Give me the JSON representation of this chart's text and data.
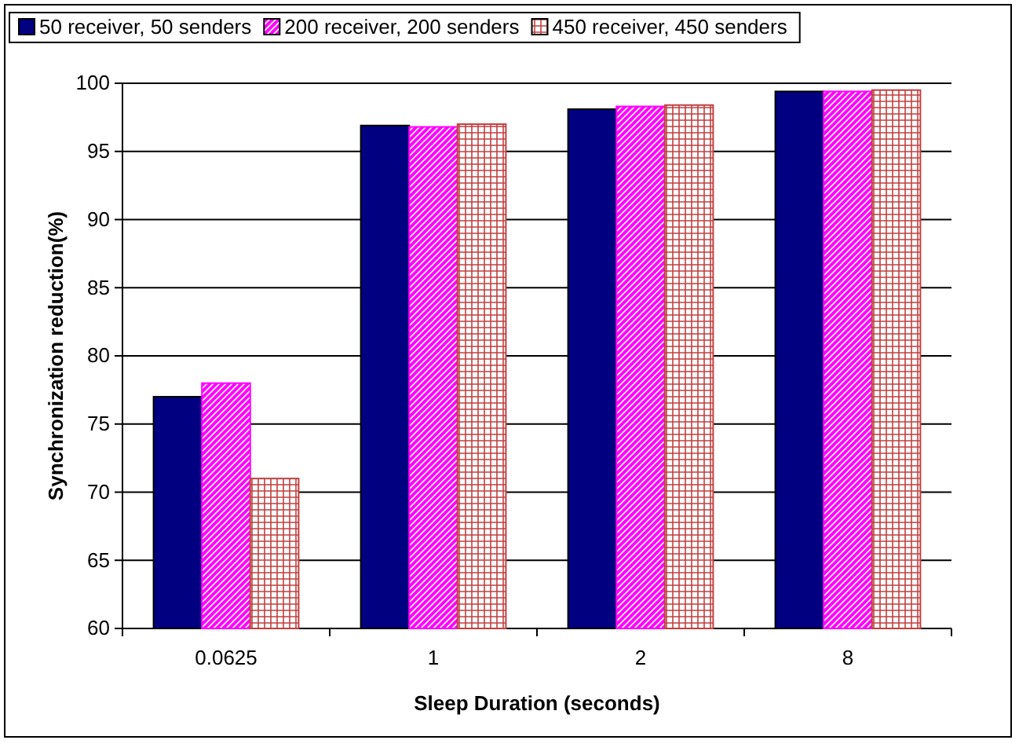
{
  "chart_data": {
    "type": "bar",
    "xlabel": "Sleep Duration (seconds)",
    "ylabel": "Synchronization reduction(%)",
    "categories": [
      "0.0625",
      "1",
      "2",
      "8"
    ],
    "series": [
      {
        "name": "50 receiver, 50 senders",
        "color": "#000080",
        "values": [
          77,
          96.9,
          98.1,
          99.4
        ]
      },
      {
        "name": "200 receiver, 200 senders",
        "color": "#ff00ff",
        "values": [
          78,
          96.8,
          98.3,
          99.4
        ]
      },
      {
        "name": "450 receiver, 450 senders",
        "color": "#c04040",
        "values": [
          71,
          97,
          98.4,
          99.5
        ]
      }
    ],
    "ylim": [
      60,
      100
    ],
    "yticks": [
      60,
      65,
      70,
      75,
      80,
      85,
      90,
      95,
      100
    ],
    "grid": "y",
    "legend": "top"
  }
}
